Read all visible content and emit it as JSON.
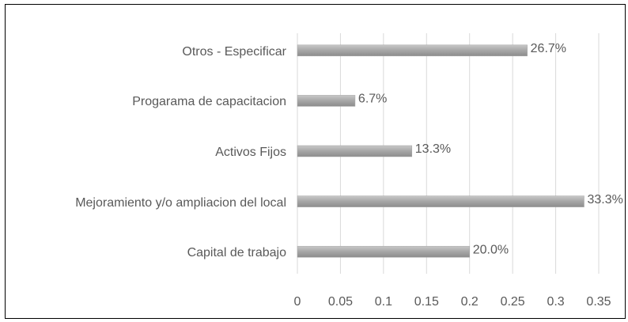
{
  "chart_data": {
    "type": "bar",
    "orientation": "horizontal",
    "categories": [
      "Capital de trabajo",
      "Mejoramiento y/o ampliacion del local",
      "Activos Fijos",
      "Progarama de capacitacion",
      "Otros - Especificar"
    ],
    "values": [
      0.2,
      0.333,
      0.133,
      0.067,
      0.267
    ],
    "value_labels": [
      "20.0%",
      "33.3%",
      "13.3%",
      "6.7%",
      "26.7%"
    ],
    "color": "#a6a6a6",
    "xlim": [
      0,
      0.35
    ],
    "xticks": [
      0,
      0.05,
      0.1,
      0.15,
      0.2,
      0.25,
      0.3,
      0.35
    ],
    "grid": true
  }
}
